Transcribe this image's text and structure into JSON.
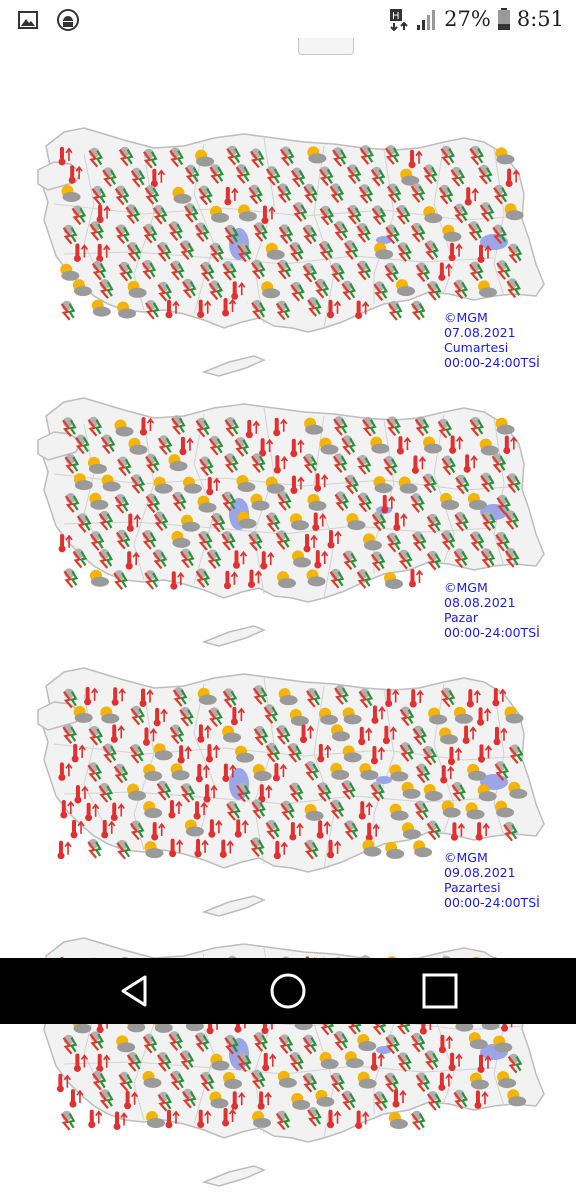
{
  "status_bar": {
    "icons_left": [
      "gallery-icon",
      "android-debug-icon"
    ],
    "icons_right": [
      "data-transfer-icon",
      "signal-icon",
      "battery-icon"
    ],
    "battery_percent": "27%",
    "time": "8:51"
  },
  "maps": [
    {
      "credit": "©MGM",
      "date": "07.08.2021",
      "day": "Cumartesi",
      "time_range": "00:00-24:00TSİ"
    },
    {
      "credit": "©MGM",
      "date": "08.08.2021",
      "day": "Pazar",
      "time_range": "00:00-24:00TSİ"
    },
    {
      "credit": "©MGM",
      "date": "09.08.2021",
      "day": "Pazartesi",
      "time_range": "00:00-24:00TSİ"
    }
  ],
  "colors": {
    "land": "#f2f2f2",
    "border": "#bdbdbd",
    "lake": "#9aa6e8",
    "label": "#1a1aee",
    "storm_red": "#e23a2a",
    "storm_green": "#2f8f3a",
    "sun": "#f5b400",
    "cloud": "#9a9a9a",
    "thermometer": "#e03030"
  },
  "navigation": {
    "back": "back-icon",
    "home": "home-icon",
    "recents": "recents-icon"
  }
}
